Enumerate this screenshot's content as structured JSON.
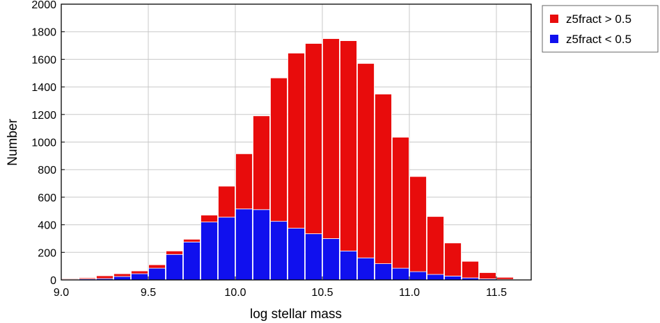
{
  "chart_data": {
    "type": "bar",
    "stacked": true,
    "title": "",
    "xlabel": "log stellar mass",
    "ylabel": "Number",
    "xlim": [
      9.0,
      11.7
    ],
    "ylim": [
      0,
      2000
    ],
    "bin_width": 0.1,
    "xticks": [
      "9.0",
      "9.5",
      "10.0",
      "10.5",
      "11.0",
      "11.5"
    ],
    "yticks": [
      "0",
      "200",
      "400",
      "600",
      "800",
      "1000",
      "1200",
      "1400",
      "1600",
      "1800",
      "2000"
    ],
    "grid": true,
    "legend_position": "outside-top-right",
    "categories": [
      "9.0-9.1",
      "9.1-9.2",
      "9.2-9.3",
      "9.3-9.4",
      "9.4-9.5",
      "9.5-9.6",
      "9.6-9.7",
      "9.7-9.8",
      "9.8-9.9",
      "9.9-10.0",
      "10.0-10.1",
      "10.1-10.2",
      "10.2-10.3",
      "10.3-10.4",
      "10.4-10.5",
      "10.5-10.6",
      "10.6-10.7",
      "10.7-10.8",
      "10.8-10.9",
      "10.9-11.0",
      "11.0-11.1",
      "11.1-11.2",
      "11.2-11.3",
      "11.3-11.4",
      "11.4-11.5",
      "11.5-11.6",
      "11.6-11.7"
    ],
    "series": [
      {
        "name": "z5fract < 0.5",
        "color": "#1010ee",
        "values": [
          5,
          7,
          10,
          25,
          45,
          85,
          185,
          275,
          420,
          455,
          515,
          510,
          425,
          375,
          335,
          300,
          210,
          160,
          118,
          85,
          60,
          40,
          28,
          15,
          8,
          4,
          2
        ]
      },
      {
        "name": "z5fract > 0.5",
        "color": "#e80c0c",
        "values": [
          5,
          8,
          20,
          20,
          20,
          25,
          25,
          20,
          50,
          225,
          400,
          680,
          1040,
          1270,
          1380,
          1450,
          1525,
          1410,
          1230,
          950,
          690,
          420,
          240,
          120,
          45,
          15,
          3
        ]
      }
    ]
  }
}
